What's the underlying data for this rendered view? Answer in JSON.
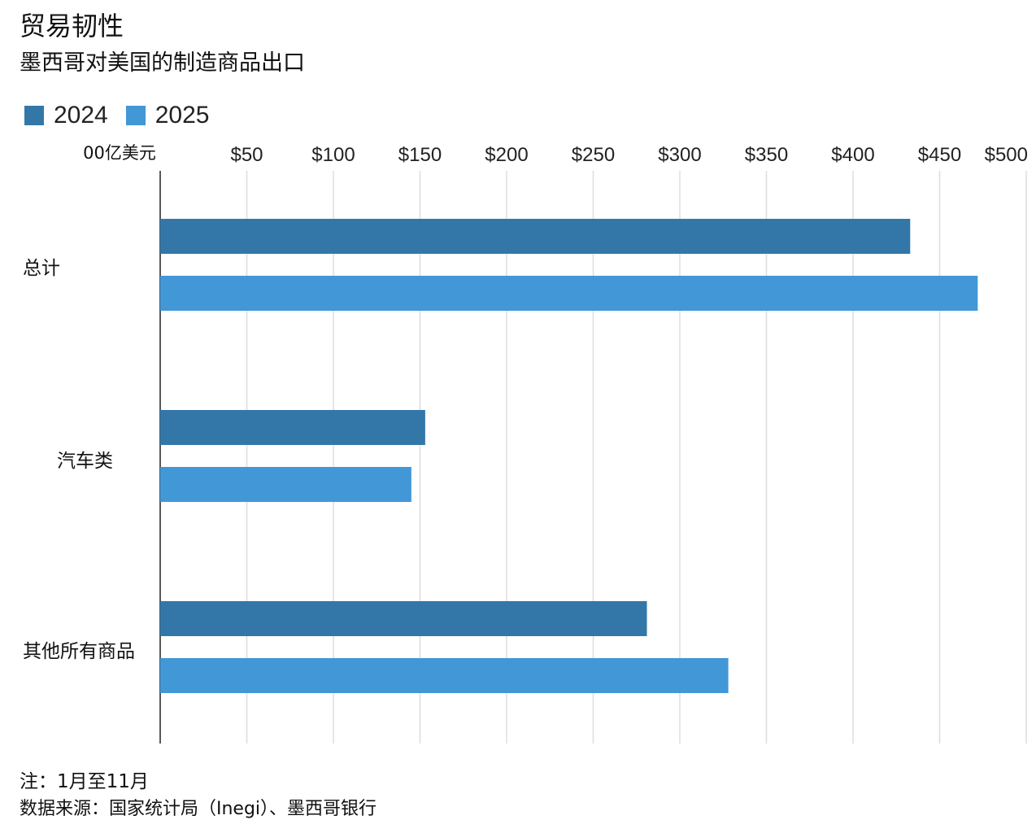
{
  "header": {
    "title": "贸易韧性",
    "subtitle": "墨西哥对美国的制造商品出口"
  },
  "footer": {
    "note": "注：1月至11月",
    "source": "数据来源：国家统计局（Inegi）、墨西哥银行"
  },
  "colors": {
    "series_2024": "#3377a9",
    "series_2025": "#4297d6",
    "grid": "#dddddd",
    "axis": "#222222"
  },
  "chart_data": {
    "type": "bar",
    "orientation": "horizontal",
    "categories": [
      "总计",
      "汽车类",
      "其他所有商品"
    ],
    "series": [
      {
        "name": "2024",
        "values": [
          433,
          153,
          281
        ]
      },
      {
        "name": "2025",
        "values": [
          472,
          145,
          328
        ]
      }
    ],
    "unit_label": "00亿美元",
    "x_ticks": [
      {
        "value": 50,
        "label": "$50"
      },
      {
        "value": 100,
        "label": "$100"
      },
      {
        "value": 150,
        "label": "$150"
      },
      {
        "value": 200,
        "label": "$200"
      },
      {
        "value": 250,
        "label": "$250"
      },
      {
        "value": 300,
        "label": "$300"
      },
      {
        "value": 350,
        "label": "$350"
      },
      {
        "value": 400,
        "label": "$400"
      },
      {
        "value": 450,
        "label": "$450"
      },
      {
        "value": 500,
        "label": "$500"
      }
    ],
    "xlim": [
      0,
      500
    ],
    "grid": true,
    "legend_position": "top-left"
  }
}
